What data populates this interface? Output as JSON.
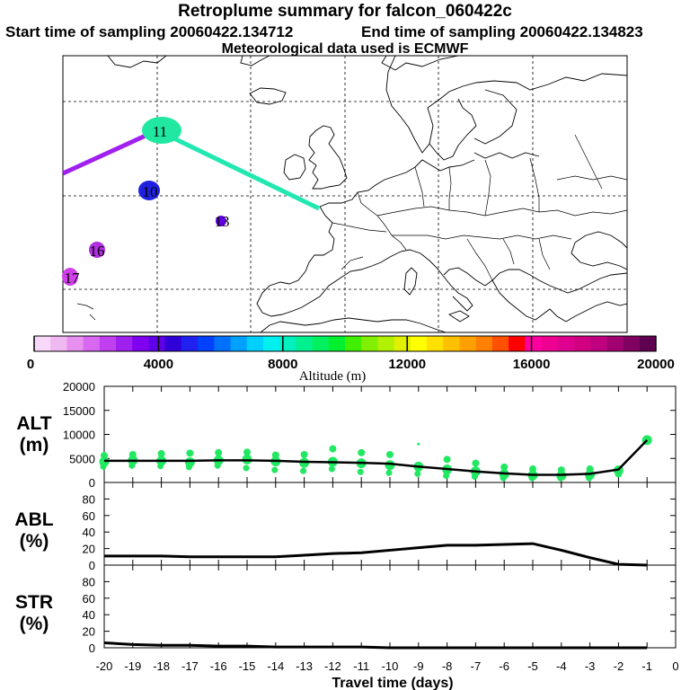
{
  "header": {
    "title": "Retroplume summary for falcon_060422c",
    "start_time": "Start time of sampling 20060422.134712",
    "end_time": "End time of sampling 20060422.134823",
    "met_data": "Meteorological data used is ECMWF"
  },
  "colorbar": {
    "title": "Altitude (m)",
    "ticks": [
      "0",
      "4000",
      "8000",
      "12000",
      "16000",
      "20000"
    ],
    "colors": [
      "#f8d8f8",
      "#f0b8f0",
      "#e890f0",
      "#d868f0",
      "#c040f0",
      "#a020f0",
      "#8000f0",
      "#6000e8",
      "#3000d8",
      "#2020f0",
      "#0040ff",
      "#0070ff",
      "#00a0ff",
      "#00d0ff",
      "#00f0f0",
      "#00f0c0",
      "#00f090",
      "#00f060",
      "#00f030",
      "#40f000",
      "#80f000",
      "#b0f000",
      "#e0f000",
      "#ffff00",
      "#ffe000",
      "#ffc000",
      "#ffa000",
      "#ff8000",
      "#ff5000",
      "#ff0000",
      "#ff00a0",
      "#f00090",
      "#e00090",
      "#d00080",
      "#c00080",
      "#a00070",
      "#800060",
      "#600050"
    ]
  },
  "map": {
    "labels": [
      {
        "text": "11",
        "color": "#20e8a0"
      },
      {
        "text": "10",
        "color": "#2020e0"
      },
      {
        "text": "13",
        "color": "#6000e0"
      },
      {
        "text": "16",
        "color": "#b030e0"
      },
      {
        "text": "17",
        "color": "#d040e8"
      }
    ],
    "track_colors": {
      "recent": "#20e8b0",
      "old": "#a020f0"
    }
  },
  "chart_data": [
    {
      "type": "scatter",
      "panel": "ALT",
      "ylabel": "ALT\n(m)",
      "ylabel_line1": "ALT",
      "ylabel_line2": "(m)",
      "ylim": [
        0,
        20000
      ],
      "yticks": [
        "0",
        "5000",
        "10000",
        "15000",
        "20000"
      ],
      "median_line": {
        "x": [
          -20,
          -19,
          -18,
          -17,
          -16,
          -15,
          -14,
          -13,
          -12,
          -11,
          -10,
          -9,
          -8,
          -7,
          -6,
          -5,
          -4,
          -3,
          -2,
          -1
        ],
        "y": [
          4500,
          4500,
          4500,
          4500,
          4600,
          4600,
          4500,
          4300,
          4200,
          4100,
          3900,
          3300,
          2800,
          2300,
          1900,
          1600,
          1600,
          1800,
          2700,
          8800
        ]
      },
      "point_color": "#20e860",
      "points": [
        {
          "x": -20,
          "y": [
            4300,
            5600,
            3300
          ]
        },
        {
          "x": -19,
          "y": [
            4600,
            5800,
            3500
          ]
        },
        {
          "x": -18,
          "y": [
            4500,
            6000,
            3400
          ]
        },
        {
          "x": -17,
          "y": [
            4200,
            6100,
            3200
          ]
        },
        {
          "x": -16,
          "y": [
            4600,
            6200,
            3500
          ]
        },
        {
          "x": -15,
          "y": [
            4800,
            6300,
            3000
          ]
        },
        {
          "x": -14,
          "y": [
            4400,
            5700,
            2600
          ]
        },
        {
          "x": -13,
          "y": [
            4100,
            5800,
            2400
          ]
        },
        {
          "x": -12,
          "y": [
            4300,
            7000,
            2800
          ]
        },
        {
          "x": -11,
          "y": [
            4000,
            6200,
            2200
          ]
        },
        {
          "x": -10,
          "y": [
            3600,
            5800,
            2000
          ]
        },
        {
          "x": -9,
          "y": [
            3300,
            8000,
            1800
          ]
        },
        {
          "x": -8,
          "y": [
            2700,
            4800,
            1400
          ]
        },
        {
          "x": -7,
          "y": [
            2300,
            4000,
            1200
          ]
        },
        {
          "x": -6,
          "y": [
            1700,
            3200,
            900
          ]
        },
        {
          "x": -5,
          "y": [
            1500,
            2800,
            900
          ]
        },
        {
          "x": -4,
          "y": [
            1400,
            2600,
            900
          ]
        },
        {
          "x": -3,
          "y": [
            1600,
            2800,
            900
          ]
        },
        {
          "x": -2,
          "y": [
            2500,
            1800
          ]
        },
        {
          "x": -1,
          "y": [
            8800
          ]
        }
      ]
    },
    {
      "type": "line",
      "panel": "ABL",
      "ylabel": "ABL\n(%)",
      "ylabel_line1": "ABL",
      "ylabel_line2": "(%)",
      "ylim": [
        0,
        100
      ],
      "yticks": [
        "0",
        "20",
        "40",
        "60",
        "80"
      ],
      "x": [
        -20,
        -19,
        -18,
        -17,
        -16,
        -15,
        -14,
        -13,
        -12,
        -11,
        -10,
        -9,
        -8,
        -7,
        -6,
        -5,
        -4,
        -3,
        -2,
        -1
      ],
      "y": [
        11,
        11,
        11,
        10,
        10,
        10,
        10,
        12,
        14,
        15,
        18,
        21,
        24,
        24,
        25,
        26,
        18,
        9,
        1,
        0
      ]
    },
    {
      "type": "line",
      "panel": "STR",
      "ylabel": "STR\n(%)",
      "ylabel_line1": "STR",
      "ylabel_line2": "(%)",
      "ylim": [
        0,
        100
      ],
      "yticks": [
        "0",
        "20",
        "40",
        "60",
        "80"
      ],
      "x": [
        -20,
        -19,
        -18,
        -17,
        -16,
        -15,
        -14,
        -13,
        -12,
        -11,
        -10,
        -9,
        -8,
        -7,
        -6,
        -5,
        -4,
        -3,
        -2,
        -1
      ],
      "y": [
        6,
        4,
        3,
        3,
        2,
        2,
        1,
        1,
        1,
        1,
        0,
        0,
        0,
        0,
        0,
        0,
        0,
        0,
        0,
        0
      ]
    }
  ],
  "xaxis": {
    "label": "Travel time (days)",
    "ticks": [
      "-20",
      "-19",
      "-18",
      "-17",
      "-16",
      "-15",
      "-14",
      "-13",
      "-12",
      "-11",
      "-10",
      "-9",
      "-8",
      "-7",
      "-6",
      "-5",
      "-4",
      "-3",
      "-2",
      "-1",
      "0"
    ],
    "xlim": [
      -20,
      0
    ]
  }
}
